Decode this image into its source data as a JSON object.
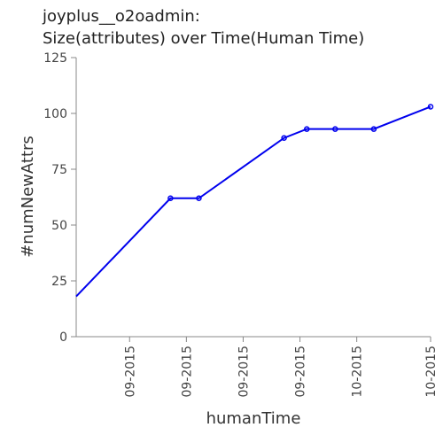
{
  "chart_data": {
    "type": "line",
    "title": [
      "joyplus__o2oadmin:",
      "Size(attributes) over Time(Human Time)"
    ],
    "xlabel": "humanTime",
    "ylabel": "#numNewAttrs",
    "ylim": [
      0,
      125
    ],
    "y_ticks": [
      0,
      25,
      50,
      75,
      100,
      125
    ],
    "x_tick_labels": [
      "09-2015",
      "09-2015",
      "09-2015",
      "09-2015",
      "10-2015",
      "10-2015"
    ],
    "x_tick_positions": [
      1,
      2,
      3,
      4,
      5,
      6.3
    ],
    "xlim": [
      0.06,
      6.3
    ],
    "series": [
      {
        "color": "#0000ee",
        "points": [
          {
            "x": 0.06,
            "y": 18
          },
          {
            "x": 1.72,
            "y": 62
          },
          {
            "x": 2.22,
            "y": 62
          },
          {
            "x": 3.72,
            "y": 89
          },
          {
            "x": 4.12,
            "y": 93
          },
          {
            "x": 4.62,
            "y": 93
          },
          {
            "x": 5.3,
            "y": 93
          },
          {
            "x": 6.3,
            "y": 103
          }
        ]
      }
    ],
    "grid": false
  }
}
